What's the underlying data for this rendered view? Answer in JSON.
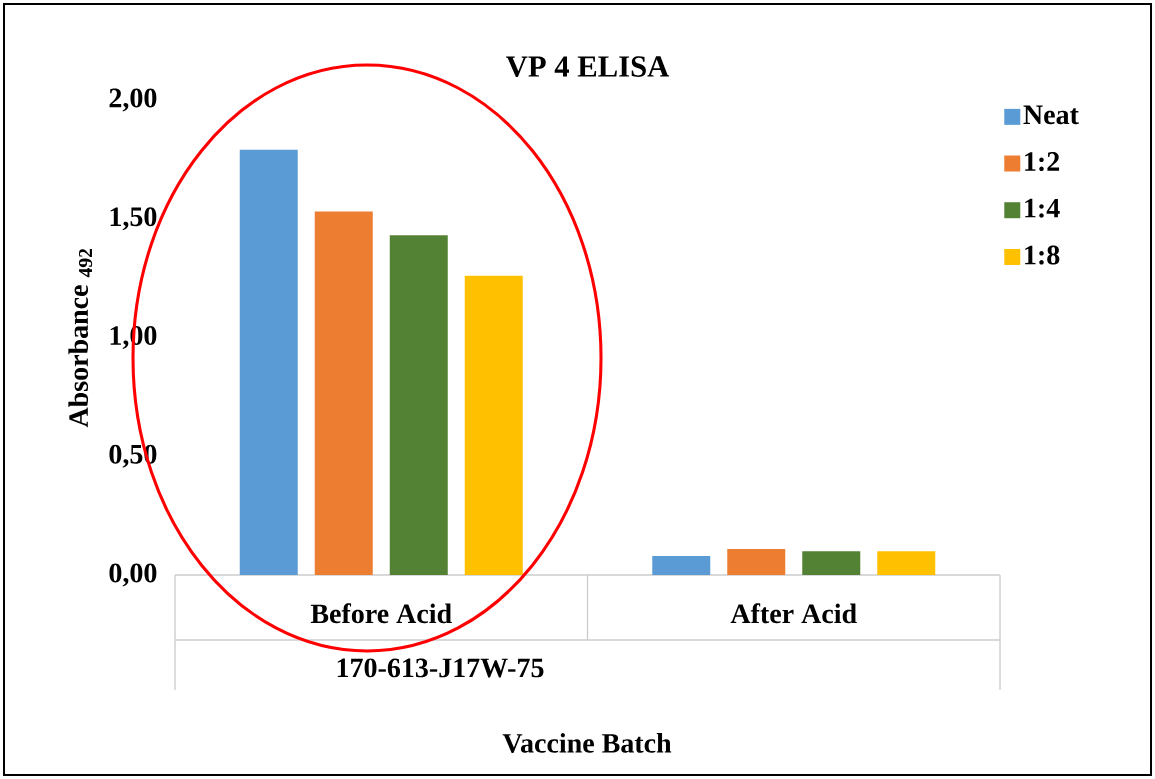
{
  "chart_data": {
    "type": "bar",
    "title": "VP 4 ELISA",
    "xlabel": "Vaccine Batch",
    "ylabel": "Absorbance $_{492}$",
    "categories": [
      "Before Acid",
      "After Acid"
    ],
    "series": [
      {
        "name": "Neat",
        "color": "#5b9bd5",
        "values": [
          1.79,
          0.08
        ]
      },
      {
        "name": "1:2",
        "color": "#ed7d31",
        "values": [
          1.53,
          0.11
        ]
      },
      {
        "name": "1:4",
        "color": "#548235",
        "values": [
          1.43,
          0.1
        ]
      },
      {
        "name": "1:8",
        "color": "#ffc000",
        "values": [
          1.26,
          0.1
        ]
      }
    ],
    "ylim": [
      0,
      2
    ],
    "yticks": [
      {
        "value": 0,
        "label": "0,00"
      },
      {
        "value": 0.5,
        "label": "0,50"
      },
      {
        "value": 1,
        "label": "1,00"
      },
      {
        "value": 1.5,
        "label": "1,50"
      },
      {
        "value": 2,
        "label": "2,00"
      }
    ],
    "annotations": [
      "170-613-J17W-75"
    ],
    "legend": "top right"
  }
}
